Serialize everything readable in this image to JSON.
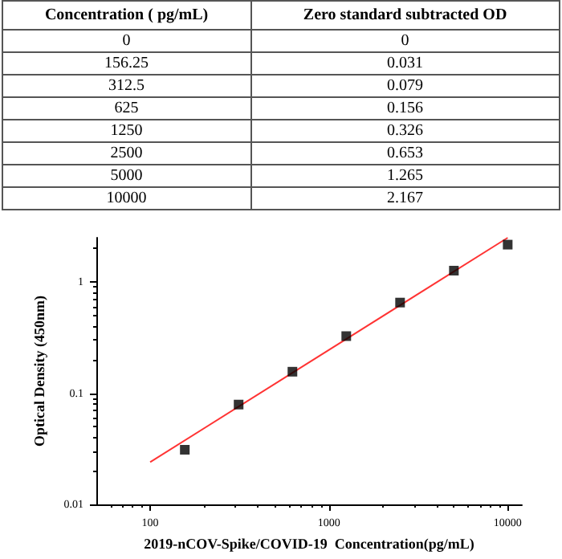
{
  "chart_data": [
    {
      "type": "other",
      "xlabel": "Concentration ( pg/mL)",
      "ylabel": "Zero standard subtracted OD",
      "categories": [
        "0",
        "156.25",
        "312.5",
        "625",
        "1250",
        "2500",
        "5000",
        "10000"
      ],
      "values": [
        0,
        0.031,
        0.079,
        0.156,
        0.326,
        0.653,
        1.265,
        2.167
      ],
      "data_labels": true
    },
    {
      "type": "scatter",
      "xlabel": "2019-nCOV-Spike/COVID-19  Concentration(pg/mL)",
      "ylabel": "Optical Density (450nm)",
      "log": "xy",
      "grid": false,
      "xlim": [
        50,
        12000
      ],
      "xticks": [
        100,
        1000,
        10000
      ],
      "ylim": [
        0.01,
        2.5
      ],
      "yticks": [
        0.01,
        0.1,
        1
      ],
      "series": [
        {
          "type": "scatter",
          "marker": "square",
          "color": "#000000",
          "x": [
            156.25,
            312.5,
            625,
            1250,
            2500,
            5000,
            10000
          ],
          "values": [
            0.031,
            0.079,
            0.156,
            0.326,
            0.653,
            1.265,
            2.167
          ]
        },
        {
          "type": "line",
          "marker": "none",
          "color": "#ff3333",
          "x": [
            100,
            10000
          ],
          "values": [
            0.024,
            2.5
          ]
        }
      ]
    }
  ]
}
